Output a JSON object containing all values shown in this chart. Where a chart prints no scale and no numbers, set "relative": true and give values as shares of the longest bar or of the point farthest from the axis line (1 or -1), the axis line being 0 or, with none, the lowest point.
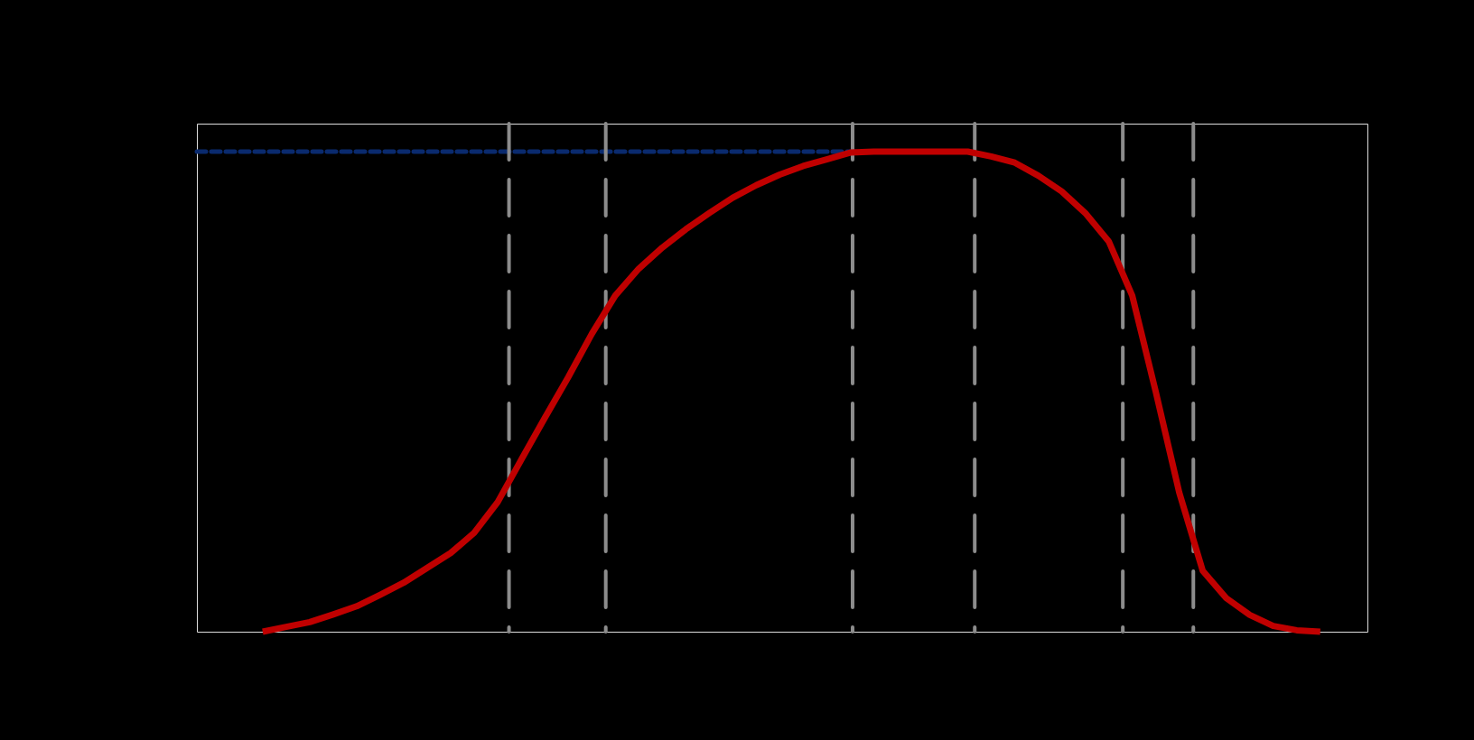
{
  "chart_data": {
    "type": "line",
    "relative": true,
    "categories": [
      null,
      null,
      null,
      null,
      null,
      null,
      null,
      null,
      null,
      null,
      null,
      null,
      null,
      null,
      null,
      null,
      null,
      null,
      null,
      null,
      null,
      null,
      null,
      null,
      null,
      null,
      null,
      null,
      null,
      null,
      null,
      null,
      null,
      null,
      null,
      null,
      null,
      null,
      null,
      null,
      null,
      null,
      null,
      null,
      null,
      null
    ],
    "series": [
      {
        "color": "#c00000",
        "line_style": "solid",
        "values": [
          0,
          0.01,
          0.02,
          0.036,
          0.053,
          0.077,
          0.102,
          0.133,
          0.164,
          0.206,
          0.27,
          0.358,
          0.445,
          0.53,
          0.62,
          0.7,
          0.756,
          0.8,
          0.838,
          0.872,
          0.904,
          0.93,
          0.952,
          0.97,
          0.984,
          0.998,
          1,
          1,
          1,
          1,
          1,
          0.99,
          0.977,
          0.95,
          0.917,
          0.872,
          0.813,
          0.7,
          0.5,
          0.29,
          0.127,
          0.07,
          0.035,
          0.012,
          0.003,
          0
        ]
      }
    ],
    "ref_lines": [
      {
        "axis": "y",
        "value": 1,
        "color": "#0a2a6e",
        "line_style": "dotted"
      }
    ]
  }
}
